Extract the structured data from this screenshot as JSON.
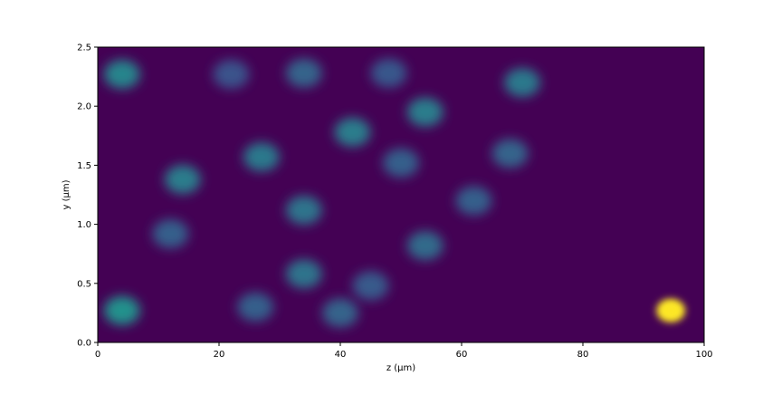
{
  "chart_data": {
    "type": "heatmap",
    "title": "",
    "xlabel": "z (μm)",
    "ylabel": "y (μm)",
    "xlim": [
      0,
      100
    ],
    "ylim": [
      0,
      2.5
    ],
    "xticks": [
      0,
      20,
      40,
      60,
      80,
      100
    ],
    "yticks": [
      0.0,
      0.5,
      1.0,
      1.5,
      2.0,
      2.5
    ],
    "xtick_labels": [
      "0",
      "20",
      "40",
      "60",
      "80",
      "100"
    ],
    "ytick_labels": [
      "0.0",
      "0.5",
      "1.0",
      "1.5",
      "2.0",
      "2.5"
    ],
    "colormap": "viridis",
    "background_color": "#440154",
    "grid": false,
    "legend": "none",
    "hotspots": [
      {
        "z": 4,
        "y": 2.27,
        "intensity": 0.45
      },
      {
        "z": 4,
        "y": 0.27,
        "intensity": 0.5
      },
      {
        "z": 14,
        "y": 1.38,
        "intensity": 0.42
      },
      {
        "z": 27,
        "y": 1.57,
        "intensity": 0.4
      },
      {
        "z": 42,
        "y": 1.78,
        "intensity": 0.42
      },
      {
        "z": 54,
        "y": 1.95,
        "intensity": 0.42
      },
      {
        "z": 34,
        "y": 2.28,
        "intensity": 0.32
      },
      {
        "z": 22,
        "y": 2.27,
        "intensity": 0.25
      },
      {
        "z": 48,
        "y": 2.28,
        "intensity": 0.27
      },
      {
        "z": 70,
        "y": 2.2,
        "intensity": 0.4
      },
      {
        "z": 34,
        "y": 1.12,
        "intensity": 0.38
      },
      {
        "z": 34,
        "y": 0.58,
        "intensity": 0.38
      },
      {
        "z": 26,
        "y": 0.3,
        "intensity": 0.3
      },
      {
        "z": 40,
        "y": 0.25,
        "intensity": 0.32
      },
      {
        "z": 45,
        "y": 0.48,
        "intensity": 0.28
      },
      {
        "z": 54,
        "y": 0.82,
        "intensity": 0.35
      },
      {
        "z": 50,
        "y": 1.52,
        "intensity": 0.3
      },
      {
        "z": 12,
        "y": 0.92,
        "intensity": 0.3
      },
      {
        "z": 62,
        "y": 1.2,
        "intensity": 0.3
      },
      {
        "z": 68,
        "y": 1.6,
        "intensity": 0.32
      },
      {
        "z": 94.5,
        "y": 0.27,
        "intensity": 1.0
      }
    ]
  }
}
